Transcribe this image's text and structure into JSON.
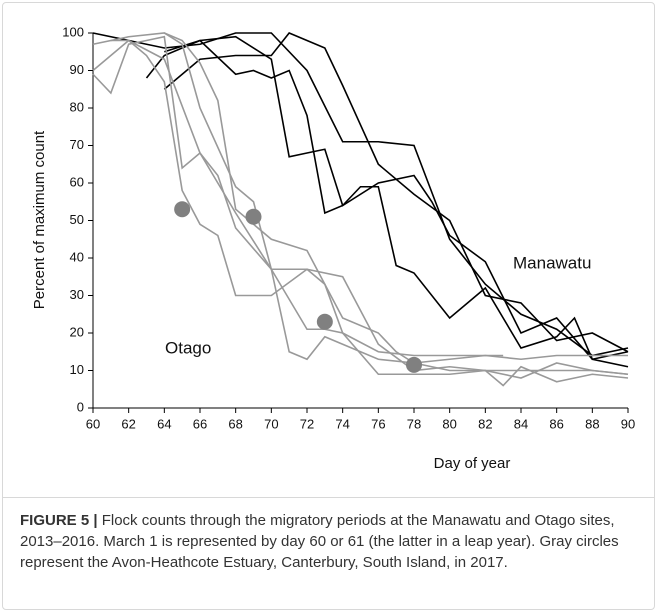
{
  "chart_data": {
    "type": "line",
    "xlabel": "Day of year",
    "ylabel": "Percent of maximum count",
    "xlim": [
      60,
      90
    ],
    "xticks": [
      60,
      62,
      64,
      66,
      68,
      70,
      72,
      74,
      76,
      78,
      80,
      82,
      84,
      86,
      88,
      90
    ],
    "ylim": [
      0,
      100
    ],
    "yticks": [
      0,
      10,
      20,
      30,
      40,
      50,
      60,
      70,
      80,
      90,
      100
    ],
    "annotations": [
      "Manawatu",
      "Otago"
    ],
    "series": [
      {
        "color": "#000000",
        "x": [
          60,
          62,
          64,
          66,
          68,
          70,
          72,
          74,
          76,
          78,
          80,
          82,
          84,
          86,
          88,
          90
        ],
        "values": [
          100,
          98,
          96,
          97,
          100,
          100,
          90,
          71,
          71,
          70,
          45,
          33,
          25,
          21,
          14,
          16
        ]
      },
      {
        "color": "#000000",
        "x": [
          63,
          64,
          66,
          68,
          70,
          71,
          72,
          73,
          74,
          76,
          78,
          79,
          80,
          82,
          84,
          86,
          88,
          90
        ],
        "values": [
          88,
          94,
          98,
          99,
          93,
          67,
          68,
          69,
          54,
          60,
          62,
          55,
          46,
          39,
          20,
          24,
          13,
          11
        ]
      },
      {
        "color": "#000000",
        "x": [
          64,
          66,
          68,
          70,
          71,
          72,
          73,
          74,
          76,
          78,
          80,
          82,
          84,
          86,
          88,
          90
        ],
        "values": [
          85,
          93,
          94,
          94,
          100,
          98,
          96,
          86,
          65,
          57,
          50,
          30,
          28,
          18,
          20,
          15
        ]
      },
      {
        "color": "#000000",
        "x": [
          64,
          66,
          68,
          69,
          70,
          71,
          72,
          73,
          74,
          75,
          76,
          77,
          78,
          80,
          81,
          82,
          84,
          86,
          87,
          88,
          90
        ],
        "values": [
          95,
          98,
          89,
          90,
          88,
          90,
          78,
          52,
          54,
          59,
          59,
          38,
          36,
          24,
          28,
          32,
          16,
          19,
          24,
          13,
          15
        ]
      },
      {
        "color": "#999999",
        "x": [
          60,
          61,
          62,
          63,
          64,
          65,
          66,
          67,
          68,
          70,
          72,
          74,
          76,
          78,
          80,
          82,
          84,
          86,
          88,
          90
        ],
        "values": [
          89,
          84,
          97,
          98,
          99,
          64,
          68,
          62,
          48,
          37,
          37,
          35,
          17,
          10,
          11,
          10,
          10,
          10,
          10,
          9
        ]
      },
      {
        "color": "#999999",
        "x": [
          60,
          62,
          64,
          65,
          66,
          68,
          69,
          70,
          71,
          72,
          73,
          74,
          76,
          78,
          80,
          82,
          84,
          86,
          88,
          90
        ],
        "values": [
          97,
          99,
          100,
          97,
          80,
          59,
          55,
          37,
          15,
          13,
          19,
          17,
          13,
          12,
          13,
          14,
          13,
          14,
          14,
          14
        ]
      },
      {
        "color": "#999999",
        "x": [
          60,
          62,
          63,
          64,
          65,
          66,
          67,
          68,
          70,
          72,
          73,
          74,
          76,
          78,
          80,
          82,
          83
        ],
        "values": [
          90,
          98,
          94,
          87,
          58,
          49,
          46,
          30,
          30,
          37,
          33,
          20,
          15,
          14,
          14,
          14,
          14
        ]
      },
      {
        "color": "#999999",
        "x": [
          61,
          62,
          64,
          66,
          68,
          70,
          72,
          73,
          74,
          76,
          78,
          80,
          82,
          84,
          86,
          88,
          90
        ],
        "values": [
          98,
          98,
          93,
          68,
          52,
          37,
          21,
          21,
          20,
          9,
          9,
          9,
          10,
          8,
          12,
          10,
          9
        ]
      },
      {
        "color": "#999999",
        "x": [
          64,
          65,
          66,
          67,
          68,
          70,
          72,
          74,
          76,
          77,
          78,
          80,
          82,
          83,
          84,
          86,
          88,
          90
        ],
        "values": [
          100,
          98,
          92,
          82,
          53,
          45,
          42,
          24,
          20,
          15,
          12,
          10,
          10,
          6,
          11,
          7,
          9,
          8
        ]
      }
    ],
    "points": {
      "color": "#808080",
      "x": [
        65,
        69,
        73,
        78
      ],
      "values": [
        53,
        51,
        23,
        11.5
      ]
    }
  },
  "caption": {
    "label": "FIGURE 5 |",
    "text": "Flock counts through the migratory periods at the Manawatu and Otago sites, 2013–2016. March 1 is represented by day 60 or 61 (the latter in a leap year). Gray circles represent the Avon-Heathcote Estuary, Canterbury, South Island, in 2017."
  }
}
